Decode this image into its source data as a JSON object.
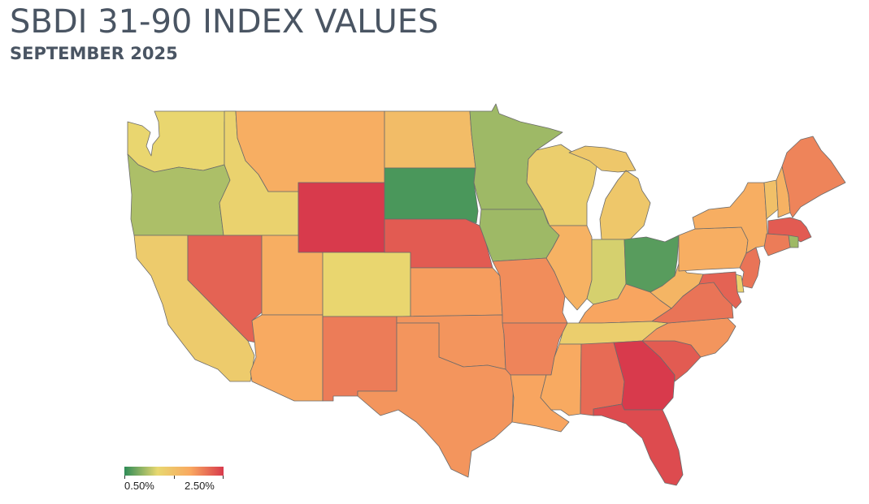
{
  "header": {
    "title": "SBDI 31-90 INDEX VALUES",
    "subtitle": "SEPTEMBER 2025"
  },
  "legend": {
    "min_label": "0.50%",
    "max_label": "2.50%",
    "min_value": 0.5,
    "max_value": 2.5,
    "colors": [
      "#2e8b57",
      "#e8d870",
      "#f9a860",
      "#d83a4c"
    ]
  },
  "map_data": {
    "region": "United States (contiguous)",
    "metric": "SBDI 31-90 index value",
    "unit": "%",
    "states": [
      {
        "id": "WA",
        "value": 1.2
      },
      {
        "id": "OR",
        "value": 0.95
      },
      {
        "id": "CA",
        "value": 1.35
      },
      {
        "id": "ID",
        "value": 1.25
      },
      {
        "id": "NV",
        "value": 2.25
      },
      {
        "id": "MT",
        "value": 1.75
      },
      {
        "id": "WY",
        "value": 2.5
      },
      {
        "id": "UT",
        "value": 1.75
      },
      {
        "id": "AZ",
        "value": 1.8
      },
      {
        "id": "CO",
        "value": 1.2
      },
      {
        "id": "NM",
        "value": 2.1
      },
      {
        "id": "ND",
        "value": 1.55
      },
      {
        "id": "SD",
        "value": 0.6
      },
      {
        "id": "NE",
        "value": 2.3
      },
      {
        "id": "KS",
        "value": 1.9
      },
      {
        "id": "OK",
        "value": 1.95
      },
      {
        "id": "TX",
        "value": 1.95
      },
      {
        "id": "MN",
        "value": 0.9
      },
      {
        "id": "IA",
        "value": 0.9
      },
      {
        "id": "MO",
        "value": 2.0
      },
      {
        "id": "AR",
        "value": 2.05
      },
      {
        "id": "LA",
        "value": 1.85
      },
      {
        "id": "WI",
        "value": 1.3
      },
      {
        "id": "IL",
        "value": 1.7
      },
      {
        "id": "MI",
        "value": 1.4
      },
      {
        "id": "IN",
        "value": 1.1
      },
      {
        "id": "OH",
        "value": 0.65
      },
      {
        "id": "KY",
        "value": 1.85
      },
      {
        "id": "TN",
        "value": 1.3
      },
      {
        "id": "MS",
        "value": 1.8
      },
      {
        "id": "AL",
        "value": 2.2
      },
      {
        "id": "GA",
        "value": 2.5
      },
      {
        "id": "FL",
        "value": 2.4
      },
      {
        "id": "SC",
        "value": 2.3
      },
      {
        "id": "NC",
        "value": 1.95
      },
      {
        "id": "VA",
        "value": 2.15
      },
      {
        "id": "WV",
        "value": 1.65
      },
      {
        "id": "PA",
        "value": 1.75
      },
      {
        "id": "NY",
        "value": 1.75
      },
      {
        "id": "VT",
        "value": 1.5
      },
      {
        "id": "NH",
        "value": 1.7
      },
      {
        "id": "ME",
        "value": 2.05
      },
      {
        "id": "MA",
        "value": 2.3
      },
      {
        "id": "RI",
        "value": 0.9
      },
      {
        "id": "CT",
        "value": 2.1
      },
      {
        "id": "NJ",
        "value": 2.15
      },
      {
        "id": "DE",
        "value": 1.25
      },
      {
        "id": "MD",
        "value": 2.25
      }
    ]
  }
}
